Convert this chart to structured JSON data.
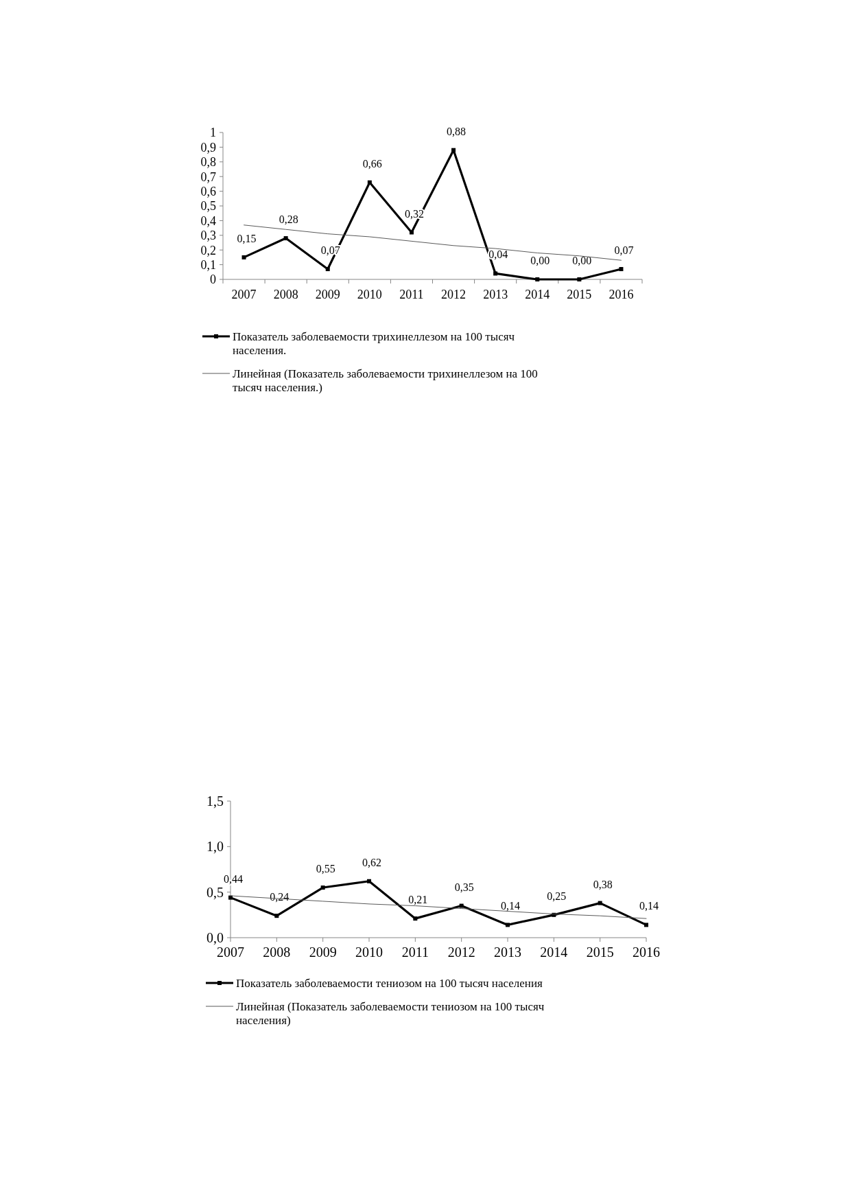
{
  "chart_data": [
    {
      "type": "line",
      "categories": [
        "2007",
        "2008",
        "2009",
        "2010",
        "2011",
        "2012",
        "2013",
        "2014",
        "2015",
        "2016"
      ],
      "ylim": [
        0,
        1
      ],
      "yticks": [
        {
          "value": 0,
          "label": "0"
        },
        {
          "value": 0.1,
          "label": "0,1"
        },
        {
          "value": 0.2,
          "label": "0,2"
        },
        {
          "value": 0.3,
          "label": "0,3"
        },
        {
          "value": 0.4,
          "label": "0,4"
        },
        {
          "value": 0.5,
          "label": "0,5"
        },
        {
          "value": 0.6,
          "label": "0,6"
        },
        {
          "value": 0.7,
          "label": "0,7"
        },
        {
          "value": 0.8,
          "label": "0,8"
        },
        {
          "value": 0.9,
          "label": "0,9"
        },
        {
          "value": 1,
          "label": "1"
        }
      ],
      "grid": false,
      "legend": "bottom",
      "line_style": "solid",
      "series": [
        {
          "name": "Показатель заболеваемости трихинеллезом на 100 тысяч населения.",
          "color": "#000000",
          "marker": "square",
          "values": [
            0.15,
            0.28,
            0.07,
            0.66,
            0.32,
            0.88,
            0.04,
            0,
            0,
            0.07
          ],
          "value_labels": [
            "0,15",
            "0,28",
            "0,07",
            "0,66",
            "0,32",
            "0,88",
            "0,04",
            "0,00",
            "0,00",
            "0,07"
          ]
        },
        {
          "type": "line",
          "name": "Линейная (Показатель заболеваемости трихинеллезом на 100 тысяч населения.)",
          "color": "#595959",
          "marker": "none",
          "values": [
            0.37,
            0.34,
            0.31,
            0.29,
            0.26,
            0.23,
            0.21,
            0.18,
            0.16,
            0.13
          ]
        }
      ]
    },
    {
      "type": "line",
      "categories": [
        "2007",
        "2008",
        "2009",
        "2010",
        "2011",
        "2012",
        "2013",
        "2014",
        "2015",
        "2016"
      ],
      "ylim": [
        0,
        1.5
      ],
      "yticks": [
        {
          "value": 0,
          "label": "0,0"
        },
        {
          "value": 0.5,
          "label": "0,5"
        },
        {
          "value": 1,
          "label": "1,0"
        },
        {
          "value": 1.5,
          "label": "1,5"
        }
      ],
      "grid": false,
      "legend": "bottom",
      "line_style": "solid",
      "series": [
        {
          "name": "Показатель заболеваемости тениозом на 100 тысяч населения",
          "color": "#000000",
          "marker": "square",
          "values": [
            0.44,
            0.24,
            0.55,
            0.62,
            0.21,
            0.35,
            0.14,
            0.25,
            0.38,
            0.14
          ],
          "value_labels": [
            "0,44",
            "0,24",
            "0,55",
            "0,62",
            "0,21",
            "0,35",
            "0,14",
            "0,25",
            "0,38",
            "0,14"
          ]
        },
        {
          "type": "line",
          "name": "Линейная (Показатель заболеваемости тениозом на 100 тысяч населения)",
          "color": "#595959",
          "marker": "none",
          "values": [
            0.46,
            0.43,
            0.4,
            0.37,
            0.35,
            0.32,
            0.29,
            0.26,
            0.24,
            0.21
          ]
        }
      ]
    }
  ]
}
